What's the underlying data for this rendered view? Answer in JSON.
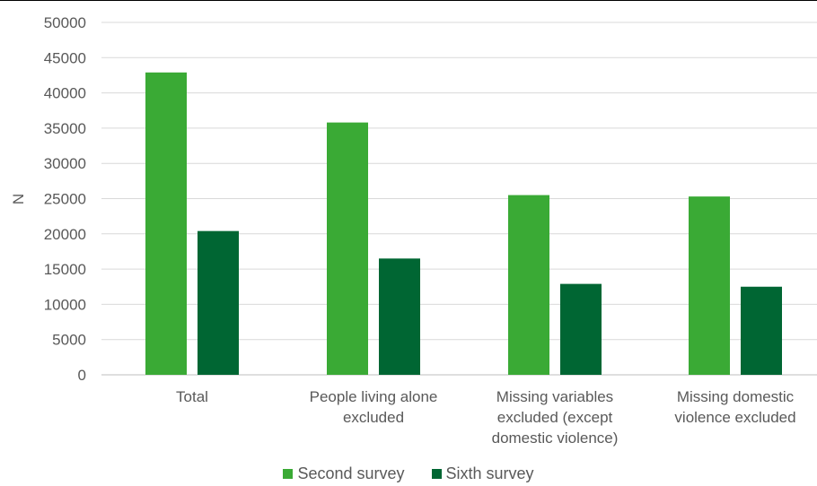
{
  "chart_data": {
    "type": "bar",
    "categories": [
      [
        "Total"
      ],
      [
        "People living alone",
        "excluded"
      ],
      [
        "Missing variables",
        "excluded (except",
        "domestic violence)"
      ],
      [
        "Missing domestic",
        "violence excluded"
      ]
    ],
    "series": [
      {
        "name": "Second survey",
        "color": "#3aaa35",
        "values": [
          42900,
          35800,
          25500,
          25300
        ]
      },
      {
        "name": "Sixth survey",
        "color": "#006633",
        "values": [
          20400,
          16500,
          12900,
          12500
        ]
      }
    ],
    "xlabel": "",
    "ylabel": "N",
    "ylim": [
      0,
      50000
    ],
    "yticks": [
      0,
      5000,
      10000,
      15000,
      20000,
      25000,
      30000,
      35000,
      40000,
      45000,
      50000
    ],
    "grid": true,
    "legend": "bottom-center"
  }
}
